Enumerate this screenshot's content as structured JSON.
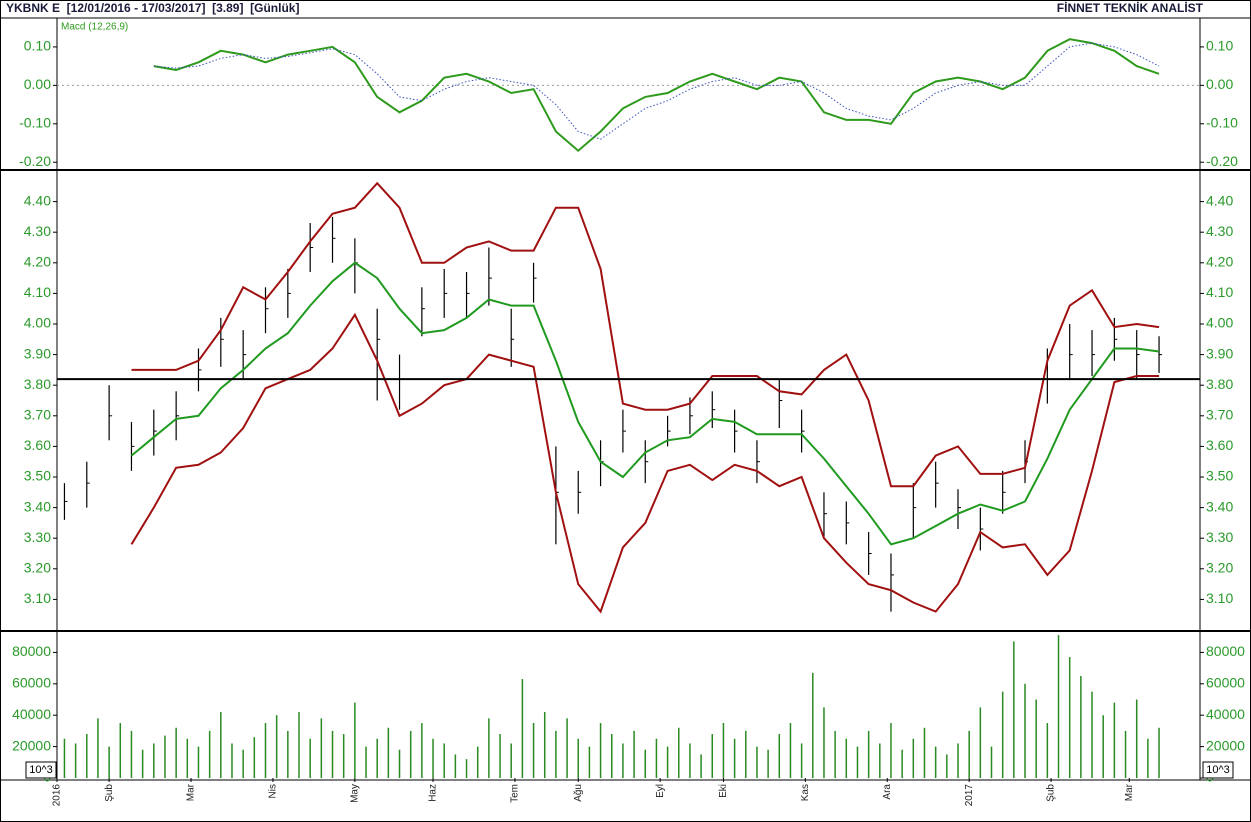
{
  "header": {
    "title": "YKBNK E  [12/01/2016 - 17/03/2017]  [3.89]  [Günlük]",
    "brand": "FİNNET TEKNİK ANALİST"
  },
  "chart_data": [
    {
      "type": "line",
      "xlim": [
        0,
        307
      ],
      "ylim": [
        -0.215,
        0.157
      ],
      "yticks": [
        {
          "value": 0.1,
          "label": "0.10"
        },
        {
          "value": 0,
          "label": "0.00"
        },
        {
          "value": -0.1,
          "label": "-0.10"
        },
        {
          "value": -0.2,
          "label": "-0.20"
        }
      ],
      "x": [
        26,
        32,
        38,
        44,
        50,
        56,
        62,
        68,
        74,
        80,
        86,
        92,
        98,
        104,
        110,
        116,
        122,
        128,
        134,
        140,
        146,
        152,
        158,
        164,
        170,
        176,
        182,
        188,
        194,
        200,
        206,
        212,
        218,
        224,
        230,
        236,
        242,
        248,
        254,
        260,
        266,
        272,
        278,
        284,
        290,
        296
      ],
      "series": [
        {
          "name": "Macd (12,26,9)",
          "color": "#2e9a1c",
          "values": [
            0.05,
            0.04,
            0.06,
            0.09,
            0.08,
            0.06,
            0.08,
            0.09,
            0.1,
            0.06,
            -0.03,
            -0.07,
            -0.04,
            0.02,
            0.03,
            0.01,
            -0.02,
            -0.01,
            -0.12,
            -0.17,
            -0.12,
            -0.06,
            -0.03,
            -0.02,
            0.01,
            0.03,
            0.01,
            -0.01,
            0.02,
            0.01,
            -0.07,
            -0.09,
            -0.09,
            -0.1,
            -0.02,
            0.01,
            0.02,
            0.01,
            -0.01,
            0.02,
            0.09,
            0.12,
            0.11,
            0.09,
            0.05,
            0.03
          ]
        },
        {
          "color": "#3b4fbf",
          "dotted": true,
          "values": [
            0.05,
            0.045,
            0.05,
            0.07,
            0.08,
            0.07,
            0.075,
            0.085,
            0.095,
            0.08,
            0.03,
            -0.03,
            -0.04,
            -0.01,
            0.01,
            0.02,
            0.01,
            0.0,
            -0.05,
            -0.12,
            -0.14,
            -0.1,
            -0.06,
            -0.04,
            -0.01,
            0.01,
            0.02,
            0.0,
            0.0,
            0.01,
            -0.02,
            -0.06,
            -0.08,
            -0.09,
            -0.06,
            -0.02,
            0.0,
            0.01,
            0.0,
            0.0,
            0.05,
            0.1,
            0.11,
            0.1,
            0.08,
            0.05
          ]
        }
      ]
    },
    {
      "type": "ohlc",
      "xlim": [
        0,
        307
      ],
      "ylim": [
        3.0,
        4.5
      ],
      "yticks": [
        {
          "value": 3.1,
          "label": "3.10"
        },
        {
          "value": 3.2,
          "label": "3.20"
        },
        {
          "value": 3.3,
          "label": "3.30"
        },
        {
          "value": 3.4,
          "label": "3.40"
        },
        {
          "value": 3.5,
          "label": "3.50"
        },
        {
          "value": 3.6,
          "label": "3.60"
        },
        {
          "value": 3.7,
          "label": "3.70"
        },
        {
          "value": 3.8,
          "label": "3.80"
        },
        {
          "value": 3.9,
          "label": "3.90"
        },
        {
          "value": 4.0,
          "label": "4.00"
        },
        {
          "value": 4.1,
          "label": "4.10"
        },
        {
          "value": 4.2,
          "label": "4.20"
        },
        {
          "value": 4.3,
          "label": "4.30"
        },
        {
          "value": 4.4,
          "label": "4.40"
        }
      ],
      "reference_line": 3.82,
      "x": [
        2,
        8,
        14,
        20,
        26,
        32,
        38,
        44,
        50,
        56,
        62,
        68,
        74,
        80,
        86,
        92,
        98,
        104,
        110,
        116,
        122,
        128,
        134,
        140,
        146,
        152,
        158,
        164,
        170,
        176,
        182,
        188,
        194,
        200,
        206,
        212,
        218,
        224,
        230,
        236,
        242,
        248,
        254,
        260,
        266,
        272,
        278,
        284,
        290,
        296
      ],
      "bars": {
        "color": "#000000",
        "high": [
          3.48,
          3.55,
          3.8,
          3.68,
          3.72,
          3.78,
          3.92,
          4.02,
          3.98,
          4.12,
          4.18,
          4.33,
          4.35,
          4.28,
          4.05,
          3.9,
          4.12,
          4.18,
          4.17,
          4.25,
          4.05,
          4.2,
          3.6,
          3.52,
          3.62,
          3.72,
          3.62,
          3.7,
          3.76,
          3.78,
          3.72,
          3.62,
          3.82,
          3.72,
          3.45,
          3.42,
          3.32,
          3.25,
          3.48,
          3.55,
          3.46,
          3.4,
          3.52,
          3.62,
          3.92,
          4.0,
          3.98,
          4.02,
          3.98,
          3.96
        ],
        "low": [
          3.36,
          3.4,
          3.62,
          3.52,
          3.57,
          3.62,
          3.78,
          3.86,
          3.82,
          3.97,
          4.02,
          4.17,
          4.2,
          4.1,
          3.75,
          3.72,
          3.96,
          4.02,
          4.02,
          4.06,
          3.86,
          4.07,
          3.28,
          3.38,
          3.47,
          3.58,
          3.48,
          3.6,
          3.64,
          3.66,
          3.58,
          3.48,
          3.66,
          3.58,
          3.3,
          3.28,
          3.18,
          3.06,
          3.3,
          3.4,
          3.33,
          3.26,
          3.38,
          3.48,
          3.74,
          3.82,
          3.83,
          3.88,
          3.82,
          3.84
        ],
        "close": [
          3.42,
          3.48,
          3.7,
          3.6,
          3.65,
          3.7,
          3.85,
          3.95,
          3.9,
          4.05,
          4.1,
          4.25,
          4.28,
          4.2,
          3.95,
          3.82,
          4.05,
          4.1,
          4.1,
          4.15,
          3.95,
          4.15,
          3.45,
          3.45,
          3.55,
          3.65,
          3.55,
          3.65,
          3.7,
          3.72,
          3.65,
          3.55,
          3.75,
          3.65,
          3.38,
          3.35,
          3.25,
          3.18,
          3.4,
          3.48,
          3.4,
          3.33,
          3.45,
          3.55,
          3.82,
          3.9,
          3.9,
          3.95,
          3.9,
          3.9
        ]
      },
      "series": [
        {
          "color": "#1f9a1f",
          "values": [
            null,
            null,
            null,
            3.57,
            3.63,
            3.69,
            3.7,
            3.79,
            3.85,
            3.92,
            3.97,
            4.06,
            4.14,
            4.2,
            4.15,
            4.05,
            3.97,
            3.98,
            4.02,
            4.08,
            4.06,
            4.06,
            3.88,
            3.68,
            3.55,
            3.5,
            3.58,
            3.62,
            3.63,
            3.69,
            3.68,
            3.64,
            3.64,
            3.64,
            3.56,
            3.47,
            3.38,
            3.28,
            3.3,
            3.34,
            3.38,
            3.41,
            3.39,
            3.42,
            3.56,
            3.72,
            3.82,
            3.92,
            3.92,
            3.91
          ]
        },
        {
          "color": "#a01010",
          "values": [
            null,
            null,
            null,
            3.85,
            3.85,
            3.85,
            3.88,
            3.98,
            4.12,
            4.08,
            4.17,
            4.27,
            4.36,
            4.38,
            4.46,
            4.38,
            4.2,
            4.2,
            4.25,
            4.27,
            4.24,
            4.24,
            4.38,
            4.38,
            4.18,
            3.74,
            3.72,
            3.72,
            3.74,
            3.83,
            3.83,
            3.83,
            3.78,
            3.77,
            3.85,
            3.9,
            3.75,
            3.47,
            3.47,
            3.57,
            3.6,
            3.51,
            3.51,
            3.53,
            3.88,
            4.06,
            4.11,
            3.99,
            4.0,
            3.99
          ]
        },
        {
          "color": "#a01010",
          "values": [
            null,
            null,
            null,
            3.28,
            3.4,
            3.53,
            3.54,
            3.58,
            3.66,
            3.79,
            3.82,
            3.85,
            3.92,
            4.03,
            3.88,
            3.7,
            3.74,
            3.8,
            3.82,
            3.9,
            3.88,
            3.86,
            3.45,
            3.15,
            3.06,
            3.27,
            3.35,
            3.52,
            3.54,
            3.49,
            3.54,
            3.52,
            3.47,
            3.5,
            3.3,
            3.22,
            3.15,
            3.13,
            3.09,
            3.06,
            3.15,
            3.32,
            3.27,
            3.28,
            3.18,
            3.26,
            3.52,
            3.81,
            3.83,
            3.83
          ]
        }
      ]
    },
    {
      "type": "bar",
      "xlim": [
        0,
        307
      ],
      "ylim": [
        0,
        93000
      ],
      "color": "#2a8a22",
      "unit_label": "10^3",
      "yticks": [
        0,
        20000,
        40000,
        60000,
        80000
      ],
      "xticks": [
        {
          "value": 0,
          "label": "2016"
        },
        {
          "value": 14,
          "label": "Şub"
        },
        {
          "value": 36,
          "label": "Mar"
        },
        {
          "value": 58,
          "label": "Nis"
        },
        {
          "value": 80,
          "label": "May"
        },
        {
          "value": 101,
          "label": "Haz"
        },
        {
          "value": 123,
          "label": "Tem"
        },
        {
          "value": 140,
          "label": "Ağu"
        },
        {
          "value": 162,
          "label": "Eyl"
        },
        {
          "value": 179,
          "label": "Eki"
        },
        {
          "value": 201,
          "label": "Kas"
        },
        {
          "value": 223,
          "label": "Ara"
        },
        {
          "value": 245,
          "label": "2017"
        },
        {
          "value": 267,
          "label": "Şub"
        },
        {
          "value": 288,
          "label": "Mar"
        }
      ],
      "x": [
        2,
        5,
        8,
        11,
        14,
        17,
        20,
        23,
        26,
        29,
        32,
        35,
        38,
        41,
        44,
        47,
        50,
        53,
        56,
        59,
        62,
        65,
        68,
        71,
        74,
        77,
        80,
        83,
        86,
        89,
        92,
        95,
        98,
        101,
        104,
        107,
        110,
        113,
        116,
        119,
        122,
        125,
        128,
        131,
        134,
        137,
        140,
        143,
        146,
        149,
        152,
        155,
        158,
        161,
        164,
        167,
        170,
        173,
        176,
        179,
        182,
        185,
        188,
        191,
        194,
        197,
        200,
        203,
        206,
        209,
        212,
        215,
        218,
        221,
        224,
        227,
        230,
        233,
        236,
        239,
        242,
        245,
        248,
        251,
        254,
        257,
        260,
        263,
        266,
        269,
        272,
        275,
        278,
        281,
        284,
        287,
        290,
        293,
        296
      ],
      "values": [
        25000,
        22000,
        28000,
        38000,
        20000,
        35000,
        30000,
        18000,
        22000,
        27000,
        32000,
        25000,
        20000,
        30000,
        42000,
        22000,
        18000,
        26000,
        35000,
        40000,
        30000,
        42000,
        25000,
        38000,
        30000,
        28000,
        48000,
        20000,
        25000,
        32000,
        18000,
        30000,
        35000,
        25000,
        22000,
        15000,
        12000,
        20000,
        38000,
        28000,
        22000,
        63000,
        35000,
        42000,
        30000,
        38000,
        25000,
        20000,
        35000,
        28000,
        22000,
        30000,
        18000,
        25000,
        20000,
        32000,
        22000,
        15000,
        28000,
        35000,
        25000,
        30000,
        20000,
        18000,
        28000,
        35000,
        22000,
        67000,
        45000,
        30000,
        25000,
        20000,
        30000,
        22000,
        35000,
        18000,
        25000,
        32000,
        20000,
        15000,
        22000,
        30000,
        45000,
        20000,
        55000,
        87000,
        60000,
        50000,
        35000,
        91000,
        77000,
        65000,
        55000,
        40000,
        48000,
        30000,
        50000,
        25000,
        32000
      ]
    }
  ]
}
